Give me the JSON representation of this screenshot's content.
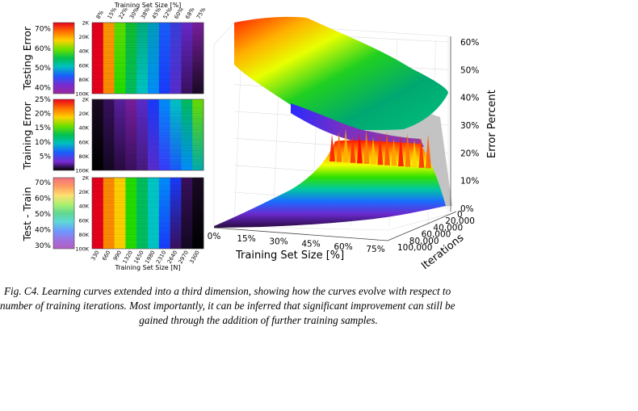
{
  "colors": {
    "ramp": [
      "#e8001c",
      "#ff3a00",
      "#ff8c00",
      "#ffd200",
      "#c8ff00",
      "#22e000",
      "#00c060",
      "#00c8c8",
      "#0090ff",
      "#1a3cff",
      "#5a2dd0",
      "#7a1fa0",
      "#3a1060",
      "#000000"
    ],
    "surface_grey": "#b8b8b8",
    "pane": "#ffffff",
    "grid": "#d9d9d9"
  },
  "chart_data": [
    {
      "type": "heatmap",
      "panel": "testing_error",
      "ylabel": "Testing Error",
      "top_axis_title": "Training Set Size [%]",
      "x_ticks_pct": [
        "8%",
        "15%",
        "22%",
        "30%",
        "38%",
        "45%",
        "52%",
        "60%",
        "68%",
        "75%"
      ],
      "y_ticks": [
        "2K",
        "20K",
        "40K",
        "60K",
        "80K",
        "100K"
      ],
      "colorbar_ticks": [
        "70%",
        "60%",
        "50%",
        "40%"
      ],
      "colorbar_range": [
        37,
        73
      ]
    },
    {
      "type": "heatmap",
      "panel": "training_error",
      "ylabel": "Training Error",
      "y_ticks": [
        "2K",
        "20K",
        "40K",
        "60K",
        "80K",
        "100K"
      ],
      "colorbar_ticks": [
        "25%",
        "20%",
        "15%",
        "10%",
        "5%"
      ],
      "colorbar_range": [
        0,
        25
      ]
    },
    {
      "type": "heatmap",
      "panel": "test_minus_train",
      "ylabel": "Test - Train",
      "y_ticks": [
        "2K",
        "20K",
        "40K",
        "60K",
        "80K",
        "100K"
      ],
      "colorbar_ticks": [
        "70%",
        "60%",
        "50%",
        "40%",
        "30%"
      ],
      "colorbar_range": [
        28,
        73
      ],
      "bottom_axis_title": "Training Set Size [N]",
      "x_ticks_n": [
        "330",
        "660",
        "990",
        "1320",
        "1650",
        "1980",
        "2310",
        "2640",
        "2970",
        "3300"
      ]
    },
    {
      "type": "area",
      "panel": "surface_3d",
      "xlabel": "Training Set Size [%]",
      "ylabel": "Iterations",
      "zlabel": "Error Percent",
      "x_ticks": [
        "0%",
        "15%",
        "30%",
        "45%",
        "60%",
        "75%"
      ],
      "y_ticks": [
        "0",
        "20,000",
        "40,000",
        "60,000",
        "80,000",
        "100,000"
      ],
      "z_ticks": [
        "0%",
        "10%",
        "20%",
        "30%",
        "40%",
        "50%",
        "60%"
      ],
      "xlim": [
        0,
        75
      ],
      "ylim": [
        0,
        100000
      ],
      "zlim": [
        0,
        60
      ]
    }
  ],
  "caption": {
    "line1": "Fig. C4.  Learning curves extended into a third dimension, showing how the curves evolve with respect to",
    "line2": "number of training iterations. Most importantly, it can be inferred that significant improvement can still be",
    "line3": "gained through the addition of further training samples."
  }
}
